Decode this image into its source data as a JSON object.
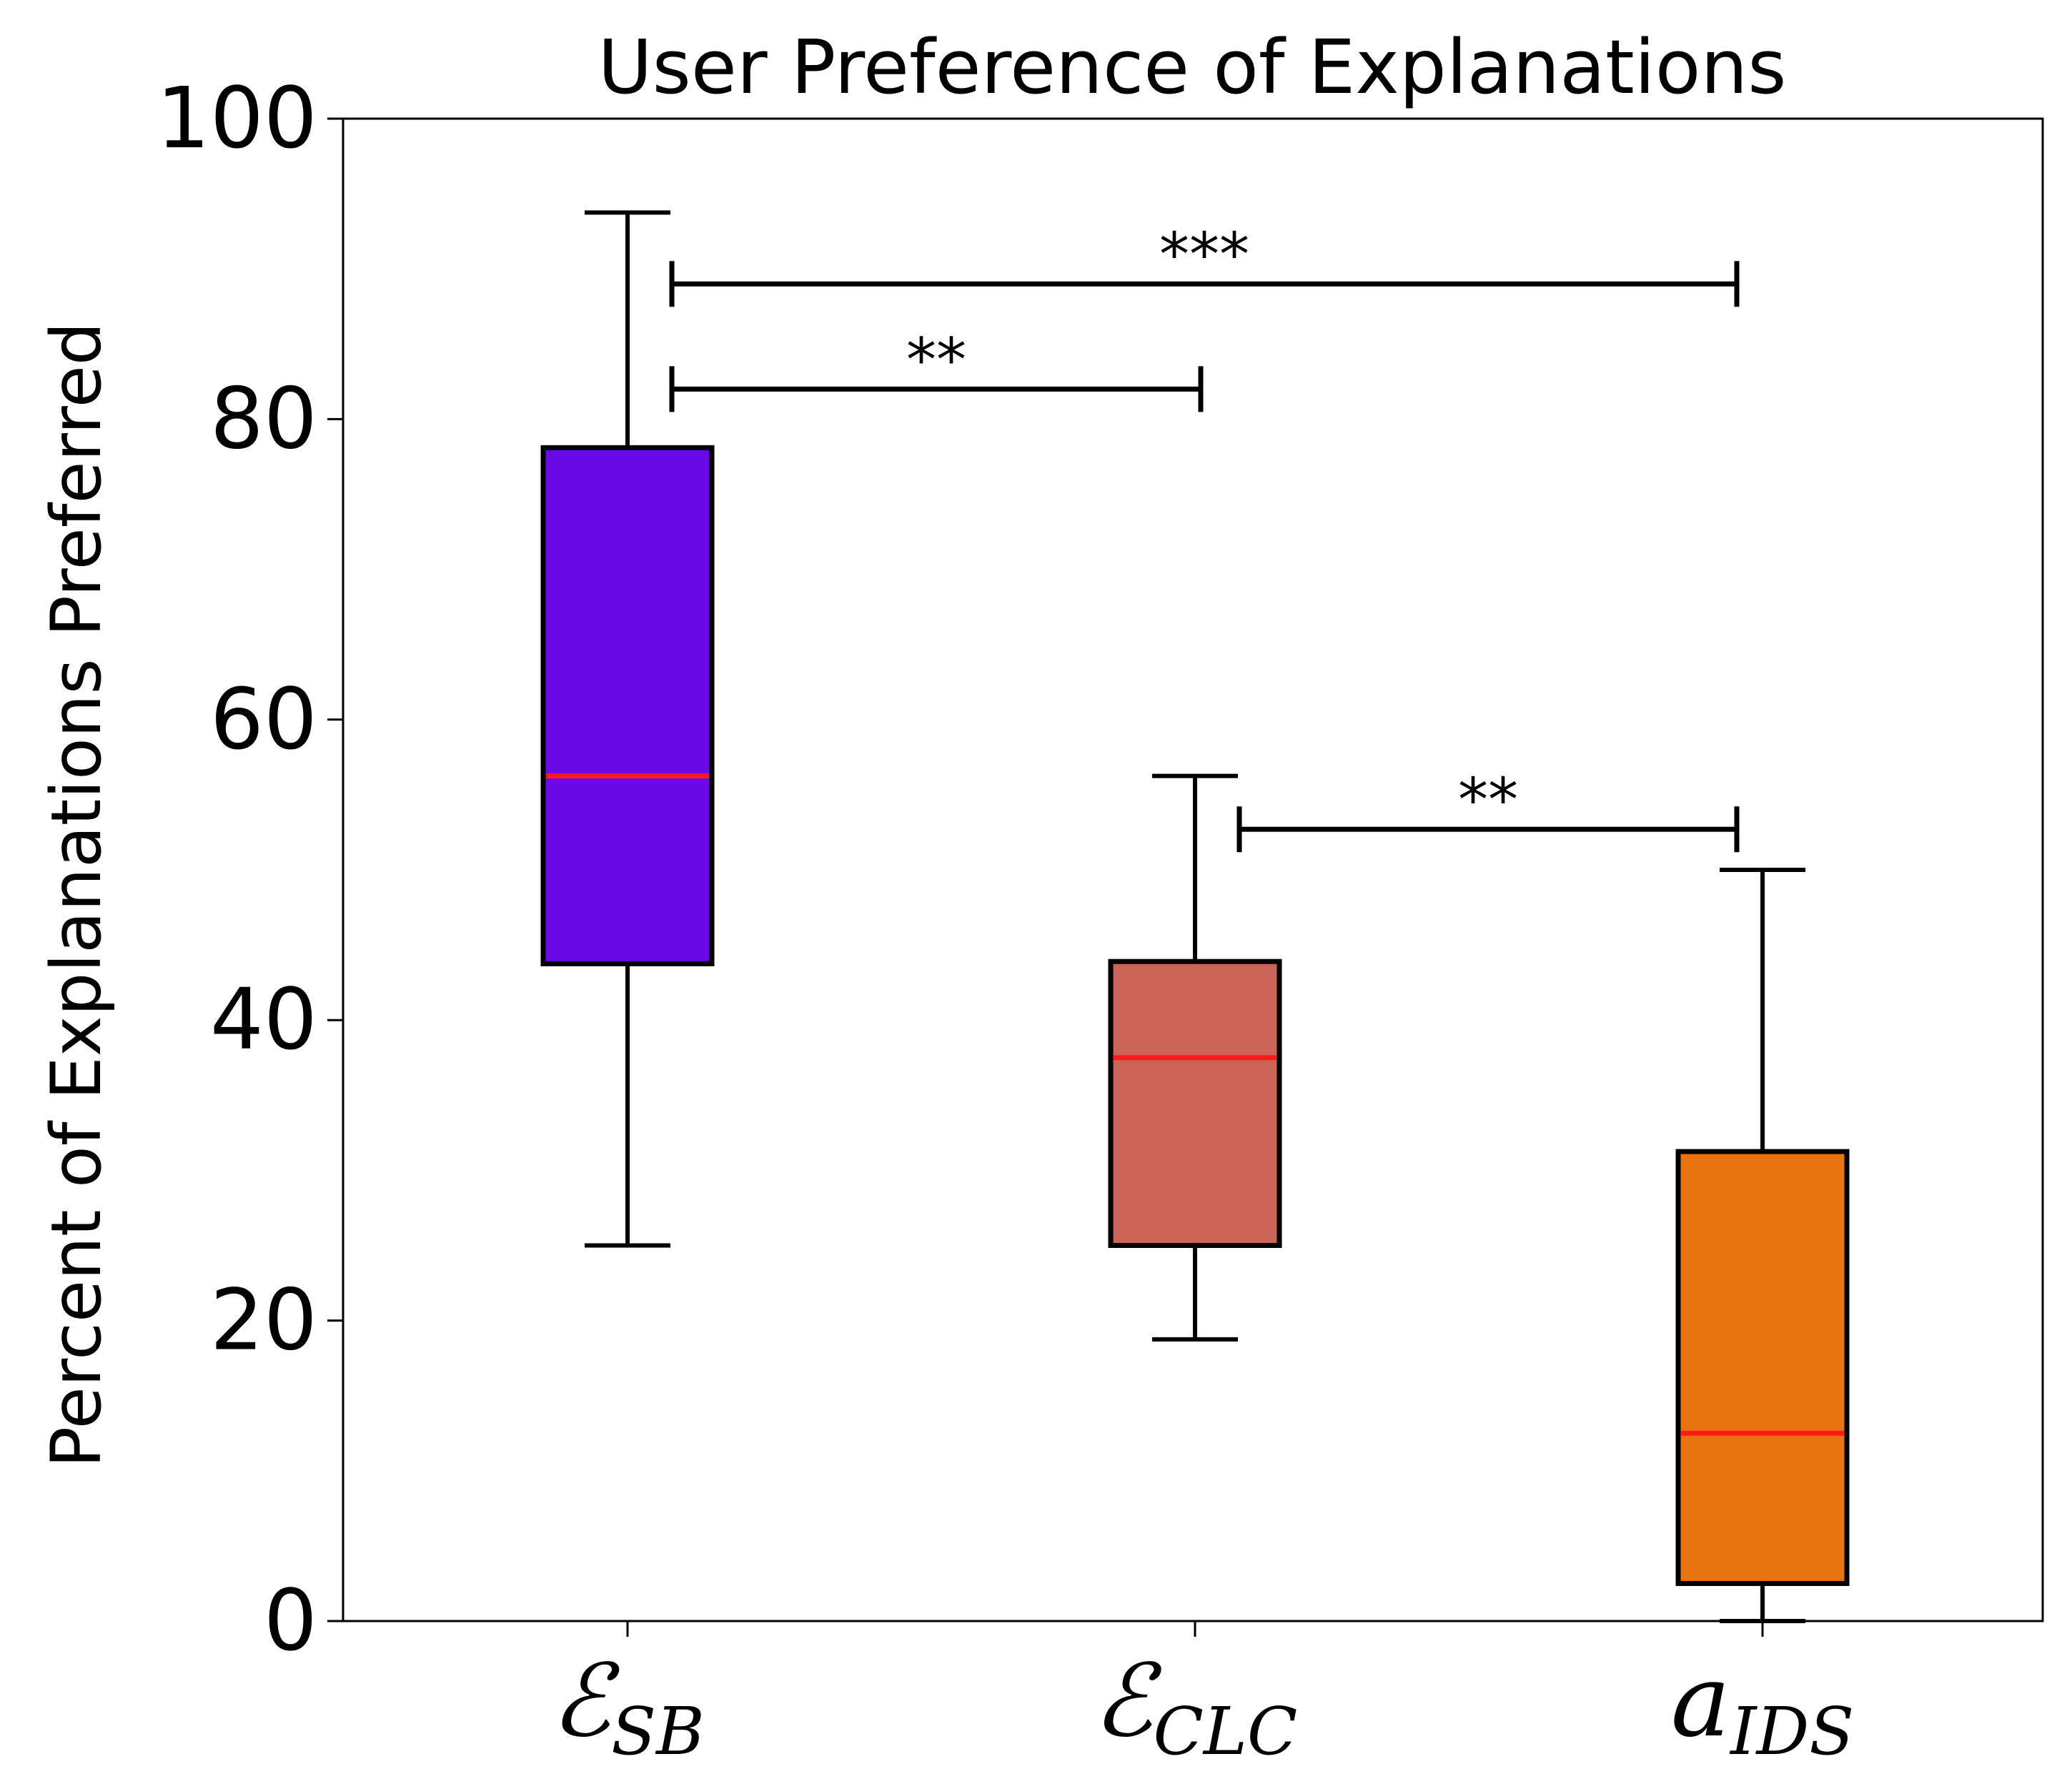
{
  "chart_data": {
    "type": "box",
    "title": "User Preference of Explanations",
    "xlabel": "",
    "ylabel": "Percent of Explanations Preferred",
    "ylim": [
      0,
      100
    ],
    "yticks": [
      "0",
      "20",
      "40",
      "60",
      "80",
      "100"
    ],
    "grid": false,
    "categories": [
      {
        "main": "ℰ",
        "sub": "SB"
      },
      {
        "main": "ℰ",
        "sub": "CLC"
      },
      {
        "main": "a",
        "sub": "IDS"
      }
    ],
    "boxes": [
      {
        "whisker_low": 25,
        "q1": 43.75,
        "median": 56.25,
        "q3": 78.1,
        "whisker_high": 93.75,
        "color": "#6a0ae6"
      },
      {
        "whisker_low": 18.75,
        "q1": 25,
        "median": 37.5,
        "q3": 43.9,
        "whisker_high": 56.25,
        "color": "#cc6357"
      },
      {
        "whisker_low": 0,
        "q1": 2.5,
        "median": 12.5,
        "q3": 31.25,
        "whisker_high": 50,
        "color": "#e8740f"
      }
    ],
    "median_color": "#ff1a1a",
    "significance": [
      {
        "from": 0,
        "to": 2,
        "y": 89,
        "label": "***"
      },
      {
        "from": 0,
        "to": 1,
        "y": 82,
        "label": "**"
      },
      {
        "from": 1,
        "to": 2,
        "y": 52.7,
        "label": "**"
      }
    ]
  }
}
